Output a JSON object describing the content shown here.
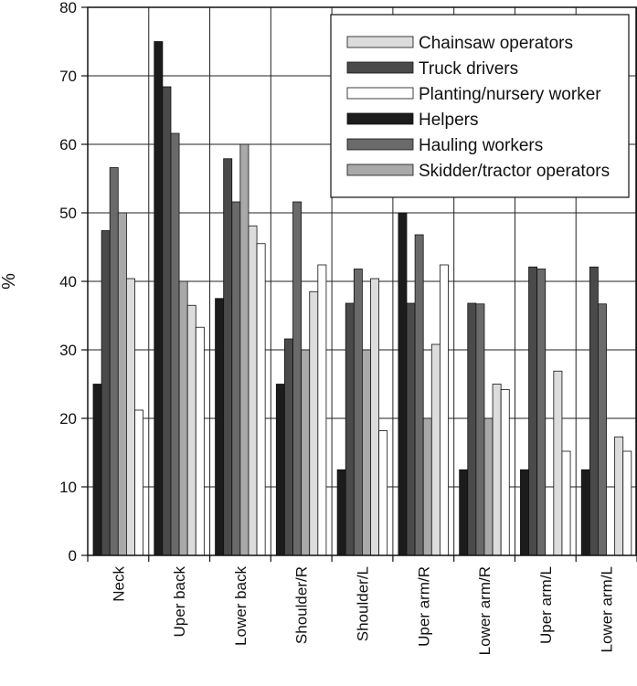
{
  "chart_data": {
    "type": "bar",
    "ylabel": "%",
    "xlabel": "",
    "ylim": [
      0,
      80
    ],
    "yticks": [
      0,
      10,
      20,
      30,
      40,
      50,
      60,
      70,
      80
    ],
    "grid": true,
    "legend_position": "top-right",
    "categories": [
      "Neck",
      "Uper back",
      "Lower back",
      "Shoulder/R",
      "Shoulder/L",
      "Uper arm/R",
      "Lower arm/R",
      "Uper arm/L",
      "Lower arm/L"
    ],
    "series": [
      {
        "name": "Helpers",
        "color": "#1c1c1c",
        "values": [
          25,
          75,
          37.5,
          25,
          12.5,
          50,
          12.5,
          12.5,
          12.5
        ]
      },
      {
        "name": "Truck drivers",
        "color": "#4a4a4a",
        "values": [
          47.4,
          68.4,
          57.9,
          31.6,
          36.8,
          36.8,
          36.8,
          42.1,
          42.1
        ]
      },
      {
        "name": "Hauling workers",
        "color": "#6a6a6a",
        "values": [
          56.6,
          61.6,
          51.6,
          51.6,
          41.8,
          46.8,
          36.7,
          41.8,
          36.7
        ]
      },
      {
        "name": "Skidder/tractor operators",
        "color": "#a9a9a9",
        "values": [
          50,
          40,
          60,
          30,
          30,
          20,
          20,
          0,
          0
        ]
      },
      {
        "name": "Chainsaw operators",
        "color": "#dcdcdc",
        "values": [
          40.4,
          36.5,
          48.1,
          38.5,
          40.4,
          30.8,
          25,
          26.9,
          17.3
        ]
      },
      {
        "name": "Planting/nursery worker",
        "color": "#ffffff",
        "values": [
          21.2,
          33.3,
          45.5,
          42.4,
          18.2,
          42.4,
          24.2,
          15.2,
          15.2
        ]
      }
    ],
    "legend_order": [
      "Chainsaw operators",
      "Truck drivers",
      "Planting/nursery worker",
      "Helpers",
      "Hauling workers",
      "Skidder/tractor operators"
    ]
  }
}
